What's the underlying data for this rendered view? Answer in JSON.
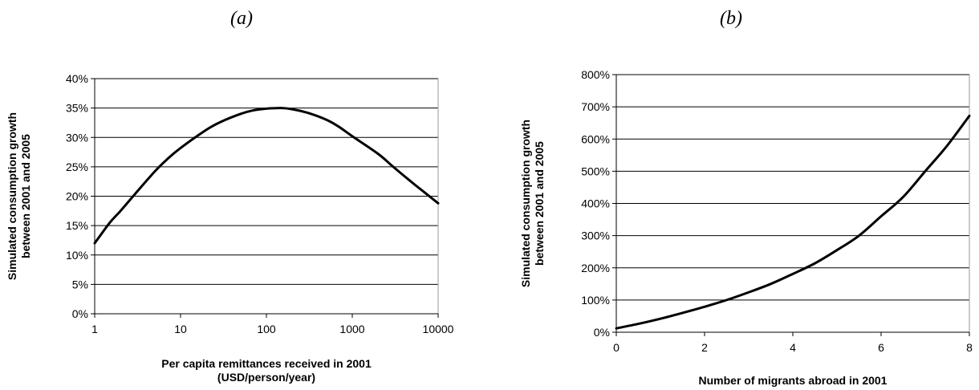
{
  "panels": [
    {
      "label": "(a)",
      "chart_data": {
        "type": "line",
        "xscale": "log",
        "xlim": [
          1,
          10000
        ],
        "ylim": [
          0,
          40
        ],
        "x_ticks": [
          1,
          10,
          100,
          1000,
          10000
        ],
        "x_tick_labels": [
          "1",
          "10",
          "100",
          "1000",
          "10000"
        ],
        "y_ticks": [
          0,
          5,
          10,
          15,
          20,
          25,
          30,
          35,
          40
        ],
        "y_tick_labels": [
          "0%",
          "5%",
          "10%",
          "15%",
          "20%",
          "25%",
          "30%",
          "35%",
          "40%"
        ],
        "grid": "horizontal",
        "xlabel": [
          "Per capita remittances received in 2001",
          "(USD/person/year)"
        ],
        "ylabel": [
          "Simulated consumption growth",
          "between 2001 and 2005"
        ],
        "series": [
          {
            "color": "#000000",
            "x": [
              1,
              1.5,
              2,
              3,
              5,
              7,
              10,
              20,
              30,
              50,
              70,
              100,
              150,
              200,
              300,
              500,
              700,
              1000,
              2000,
              3000,
              5000,
              7000,
              10000
            ],
            "y": [
              12,
              15.5,
              17.5,
              20.5,
              24.2,
              26.3,
              28.2,
              31.3,
              32.7,
              34,
              34.6,
              34.9,
              35,
              34.8,
              34.2,
              33,
              31.8,
              30.2,
              27.2,
              25,
              22.3,
              20.6,
              18.8
            ]
          }
        ]
      }
    },
    {
      "label": "(b)",
      "chart_data": {
        "type": "line",
        "xlim": [
          0,
          8
        ],
        "ylim": [
          0,
          800
        ],
        "x_ticks": [
          0,
          2,
          4,
          6,
          8
        ],
        "x_tick_labels": [
          "0",
          "2",
          "4",
          "6",
          "8"
        ],
        "y_ticks": [
          0,
          100,
          200,
          300,
          400,
          500,
          600,
          700,
          800
        ],
        "y_tick_labels": [
          "0%",
          "100%",
          "200%",
          "300%",
          "400%",
          "500%",
          "600%",
          "700%",
          "800%"
        ],
        "grid": "horizontal",
        "xlabel": [
          "Number of migrants abroad in 2001"
        ],
        "ylabel": [
          "Simulated consumption growth",
          "between 2001 and 2005"
        ],
        "series": [
          {
            "color": "#000000",
            "x": [
              0,
              0.5,
              1,
              1.5,
              2,
              2.5,
              3,
              3.5,
              4,
              4.5,
              5,
              5.5,
              6,
              6.5,
              7,
              7.5,
              8
            ],
            "y": [
              12,
              26,
              42,
              60,
              79,
              100,
              124,
              150,
              181,
              214,
              255,
              300,
              360,
              420,
              500,
              580,
              672
            ]
          }
        ]
      }
    }
  ]
}
